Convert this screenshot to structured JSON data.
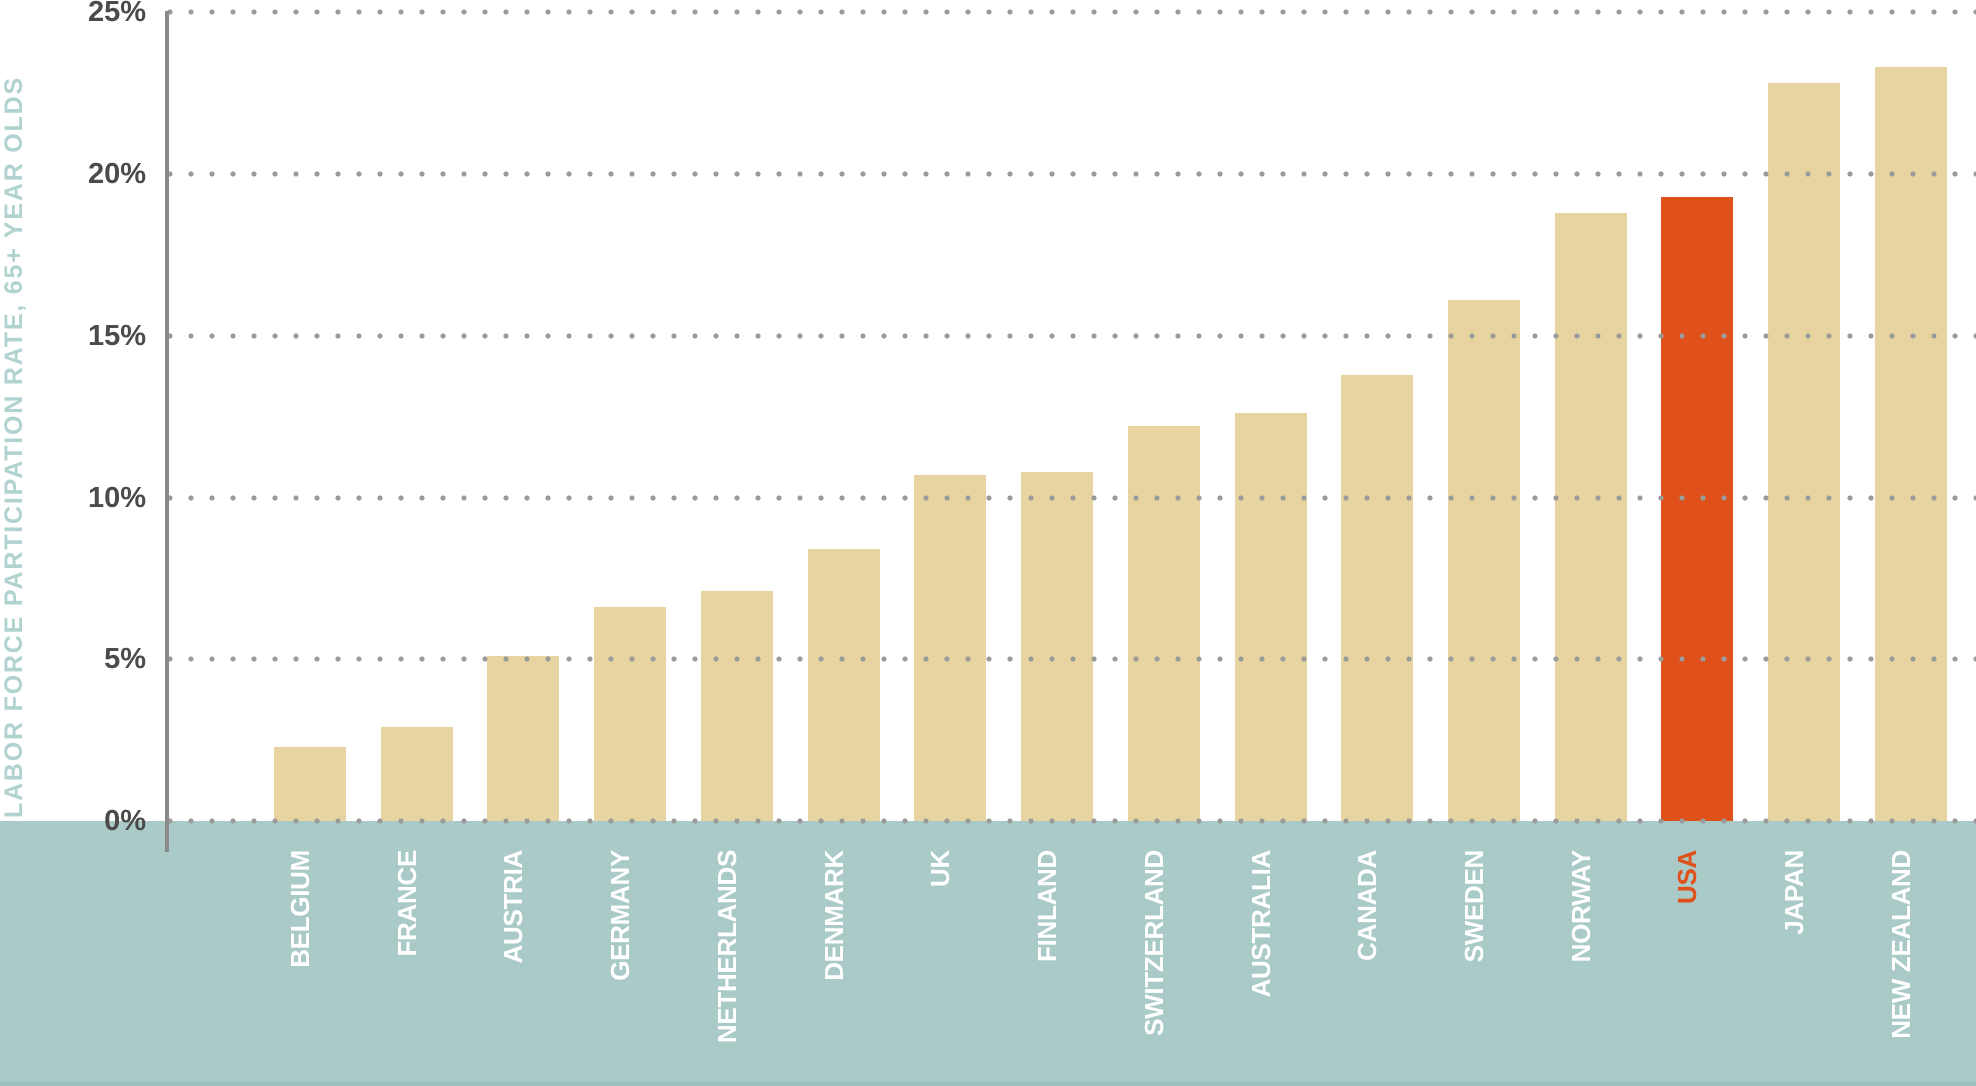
{
  "chart_data": {
    "type": "bar",
    "title": "",
    "ylabel": "LABOR FORCE PARTICIPATION RATE, 65+ YEAR OLDS",
    "xlabel": "",
    "categories": [
      "BELGIUM",
      "FRANCE",
      "AUSTRIA",
      "GERMANY",
      "NETHERLANDS",
      "DENMARK",
      "UK",
      "FINLAND",
      "SWITZERLAND",
      "AUSTRALIA",
      "CANADA",
      "SWEDEN",
      "NORWAY",
      "USA",
      "JAPAN",
      "NEW ZEALAND"
    ],
    "values": [
      2.3,
      2.9,
      5.1,
      6.6,
      7.1,
      8.4,
      10.7,
      10.8,
      12.2,
      12.6,
      13.8,
      16.1,
      18.8,
      19.3,
      22.8,
      23.3
    ],
    "value_unit": "%",
    "highlight_category": "USA",
    "ylim": [
      0,
      25
    ],
    "ytick_values": [
      0,
      5,
      10,
      15,
      20,
      25
    ],
    "ytick_labels": [
      "0%",
      "5%",
      "10%",
      "15%",
      "20%",
      "25%"
    ],
    "grid": "horizontal dotted, drawn over bars",
    "legend": "none",
    "colors": {
      "bar_default": "#e8d4a0",
      "bar_highlight": "#e0501a",
      "axis_band": "#a9cac7",
      "axis_band_edge": "#9cc0bd",
      "gridline_dots": "#9b9b9b",
      "y_axis_line": "#8a8a8a",
      "ytick_text": "#4b4b4b",
      "ylabel_text": "#b0d3d0",
      "xlabel_text": "#ffffff",
      "xlabel_highlight_text": "#e0501a",
      "background": "#ffffff"
    }
  }
}
